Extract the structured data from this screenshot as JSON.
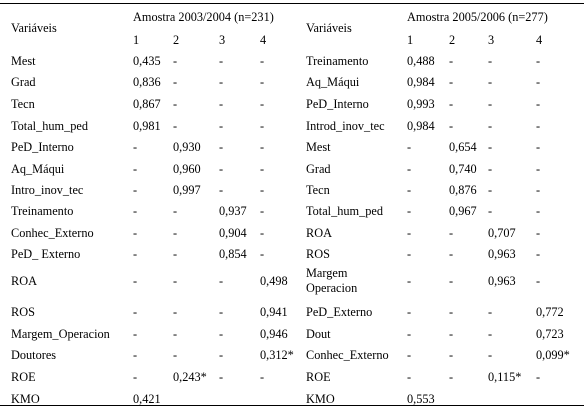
{
  "left": {
    "var_header": "Variáveis",
    "sample_header": "Amostra 2003/2004 (n=231)",
    "factor_headers": [
      "1",
      "2",
      "3",
      "4"
    ],
    "rows": [
      {
        "name": [
          "Mest"
        ],
        "values": [
          "0,435",
          "-",
          "-",
          "-"
        ]
      },
      {
        "name": [
          "Grad"
        ],
        "values": [
          "0,836",
          "-",
          "-",
          "-"
        ]
      },
      {
        "name": [
          "Tecn"
        ],
        "values": [
          "0,867",
          "-",
          "-",
          "-"
        ]
      },
      {
        "name": [
          "Total_hum_ped"
        ],
        "values": [
          "0,981",
          "-",
          "-",
          "-"
        ]
      },
      {
        "name": [
          "PeD_Interno"
        ],
        "values": [
          "-",
          "0,930",
          "-",
          "-"
        ]
      },
      {
        "name": [
          "Aq_Máqui"
        ],
        "values": [
          "-",
          "0,960",
          "-",
          "-"
        ]
      },
      {
        "name": [
          "Intro_inov_tec"
        ],
        "values": [
          "-",
          "0,997",
          "-",
          "-"
        ]
      },
      {
        "name": [
          "Treinamento"
        ],
        "values": [
          "-",
          "-",
          "0,937",
          "-"
        ]
      },
      {
        "name": [
          "Conhec_Externo"
        ],
        "values": [
          "-",
          "-",
          "0,904",
          "-"
        ]
      },
      {
        "name": [
          "PeD_ Externo"
        ],
        "values": [
          "-",
          "-",
          "0,854",
          "-"
        ]
      },
      {
        "name": [
          "ROA"
        ],
        "values": [
          "-",
          "-",
          "-",
          "0,498"
        ]
      },
      {
        "name": [
          "ROS"
        ],
        "values": [
          "-",
          "-",
          "-",
          "0,941"
        ]
      },
      {
        "name": [
          "Margem_Operacion"
        ],
        "values": [
          "-",
          "-",
          "-",
          "0,946"
        ]
      },
      {
        "name": [
          "Doutores"
        ],
        "values": [
          "-",
          "-",
          "-",
          "0,312*"
        ]
      },
      {
        "name": [
          "ROE"
        ],
        "values": [
          "-",
          "0,243*",
          "-",
          "-"
        ]
      },
      {
        "name": [
          "KMO"
        ],
        "values": [
          "0,421",
          "",
          "",
          ""
        ]
      }
    ]
  },
  "right": {
    "var_header": "Variáveis",
    "sample_header": "Amostra 2005/2006 (n=277)",
    "factor_headers": [
      "1",
      "2",
      "3",
      "4"
    ],
    "rows": [
      {
        "name": [
          "Treinamento"
        ],
        "values": [
          "0,488",
          "-",
          "-",
          "-"
        ]
      },
      {
        "name": [
          "Aq_Máqui"
        ],
        "values": [
          "0,984",
          "-",
          "-",
          "-"
        ]
      },
      {
        "name": [
          "PeD_Interno"
        ],
        "values": [
          "0,993",
          "-",
          "-",
          "-"
        ]
      },
      {
        "name": [
          "Introd_inov_tec"
        ],
        "values": [
          "0,984",
          "-",
          "-",
          "-"
        ]
      },
      {
        "name": [
          "Mest"
        ],
        "values": [
          "-",
          "0,654",
          "-",
          "-"
        ]
      },
      {
        "name": [
          "Grad"
        ],
        "values": [
          "-",
          "0,740",
          "-",
          "-"
        ]
      },
      {
        "name": [
          "Tecn"
        ],
        "values": [
          "-",
          "0,876",
          "-",
          "-"
        ]
      },
      {
        "name": [
          "Total_hum_ped"
        ],
        "values": [
          "-",
          "0,967",
          "-",
          "-"
        ]
      },
      {
        "name": [
          "ROA"
        ],
        "values": [
          "-",
          "-",
          "0,707",
          "-"
        ]
      },
      {
        "name": [
          "ROS"
        ],
        "values": [
          "-",
          "-",
          "0,963",
          "-"
        ]
      },
      {
        "name": [
          "Margem",
          "Operacion"
        ],
        "values": [
          "-",
          "-",
          "0,963",
          "-"
        ]
      },
      {
        "name": [
          "PeD_Externo"
        ],
        "values": [
          "-",
          "-",
          "-",
          "0,772"
        ]
      },
      {
        "name": [
          "Dout"
        ],
        "values": [
          "-",
          "-",
          "-",
          "0,723"
        ]
      },
      {
        "name": [
          "Conhec_Externo"
        ],
        "values": [
          "-",
          "-",
          "-",
          "0,099*"
        ]
      },
      {
        "name": [
          "ROE"
        ],
        "values": [
          "-",
          "-",
          "0,115*",
          "-"
        ]
      },
      {
        "name": [
          "KMO"
        ],
        "values": [
          "0,553",
          "",
          "",
          ""
        ]
      }
    ]
  }
}
